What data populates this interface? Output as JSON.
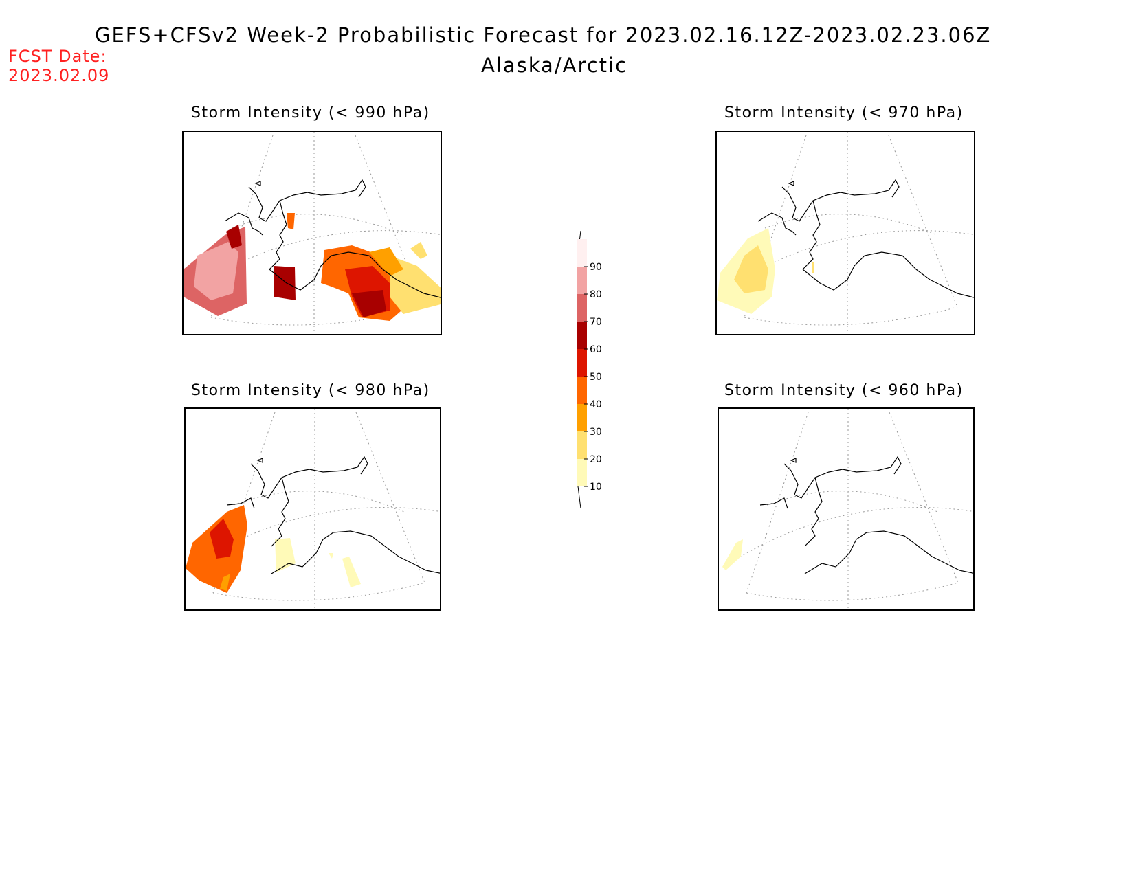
{
  "header": {
    "title": "GEFS+CFSv2 Week-2 Probabilistic Forecast for 2023.02.16.12Z-2023.02.23.06Z",
    "subtitle": "Alaska/Arctic",
    "fcst_label": "FCST Date:",
    "fcst_date": "2023.02.09"
  },
  "panels": [
    {
      "title": "Storm Intensity (< 990 hPa)"
    },
    {
      "title": "Storm Intensity (< 970 hPa)"
    },
    {
      "title": "Storm Intensity (< 980 hPa)"
    },
    {
      "title": "Storm Intensity (< 960 hPa)"
    }
  ],
  "colorbar": {
    "ticks": [
      "90",
      "80",
      "70",
      "60",
      "50",
      "40",
      "30",
      "20",
      "10"
    ],
    "colors": [
      "#fff0f0",
      "#f2a3a3",
      "#dd6464",
      "#a80000",
      "#dd1500",
      "#ff6600",
      "#ffa000",
      "#ffe070",
      "#fffab8"
    ]
  }
}
